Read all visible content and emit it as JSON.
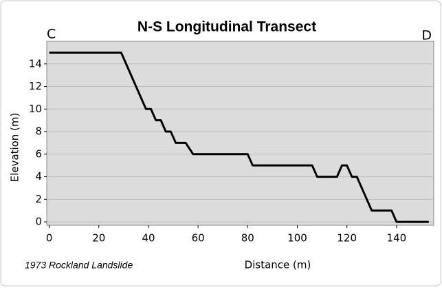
{
  "chart_data": {
    "type": "line",
    "title": "N-S Longitudinal Transect",
    "xlabel": "Distance (m)",
    "ylabel": "Elevation (m)",
    "annotations": [
      "C",
      "D",
      "1973 Rockland Landslide"
    ],
    "x": [
      0,
      29,
      33,
      37,
      39,
      41,
      43,
      45,
      47,
      49,
      51,
      55,
      58,
      80,
      82,
      106,
      108,
      116,
      118,
      120,
      122,
      124,
      126,
      128,
      130,
      138,
      140,
      153
    ],
    "values": [
      15,
      15,
      13,
      11,
      10,
      10,
      9,
      9,
      8,
      8,
      7,
      7,
      6,
      6,
      5,
      5,
      4,
      4,
      5,
      5,
      4,
      4,
      3,
      2,
      1,
      1,
      0,
      0
    ],
    "color": "#000000",
    "xlim": [
      -1,
      155
    ],
    "xticks": [
      0,
      20,
      40,
      60,
      80,
      100,
      120,
      140
    ],
    "ylim": [
      -0.3,
      16
    ],
    "yticks": [
      0,
      2,
      4,
      6,
      8,
      10,
      12,
      14
    ],
    "grid": true
  }
}
